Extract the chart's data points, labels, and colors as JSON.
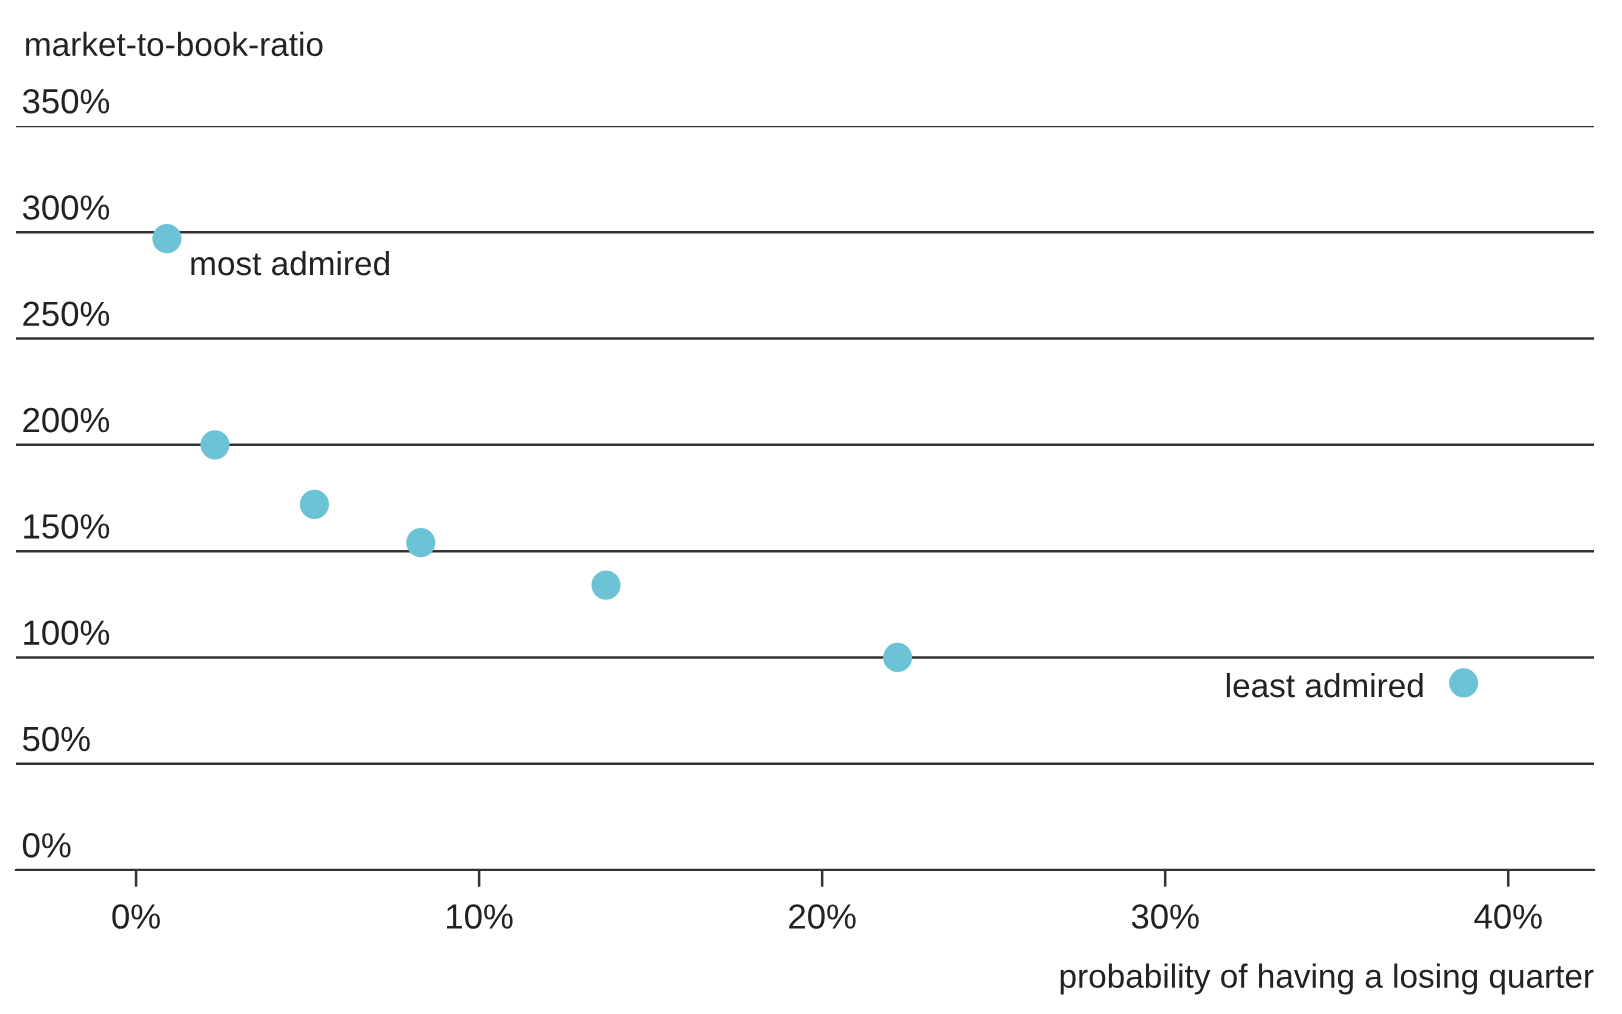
{
  "chart_data": {
    "type": "scatter",
    "xlabel": "probability of having a losing quarter",
    "ylabel": "market-to-book-ratio",
    "x": [
      0.9,
      2.3,
      5.2,
      8.3,
      13.7,
      22.2,
      38.7
    ],
    "values": [
      297,
      200,
      172,
      154,
      134,
      100,
      88
    ],
    "color": "#6cc3d5",
    "marker": "circle",
    "xlim": [
      -3.5,
      42.5
    ],
    "xticks": [
      {
        "value": 0,
        "label": "0%"
      },
      {
        "value": 10,
        "label": "10%"
      },
      {
        "value": 20,
        "label": "20%"
      },
      {
        "value": 30,
        "label": "30%"
      },
      {
        "value": 40,
        "label": "40%"
      }
    ],
    "ylim": [
      0,
      350
    ],
    "yticks": [
      {
        "value": 0,
        "label": "0%"
      },
      {
        "value": 50,
        "label": "50%"
      },
      {
        "value": 100,
        "label": "100%"
      },
      {
        "value": 150,
        "label": "150%"
      },
      {
        "value": 200,
        "label": "200%"
      },
      {
        "value": 250,
        "label": "250%"
      },
      {
        "value": 300,
        "label": "300%"
      },
      {
        "value": 350,
        "label": "350%"
      }
    ],
    "grid": "y",
    "annotations": [
      {
        "text": "most admired",
        "x": 0.9,
        "y": 297
      },
      {
        "text": "least admired",
        "x": 38.7,
        "y": 88
      }
    ]
  }
}
